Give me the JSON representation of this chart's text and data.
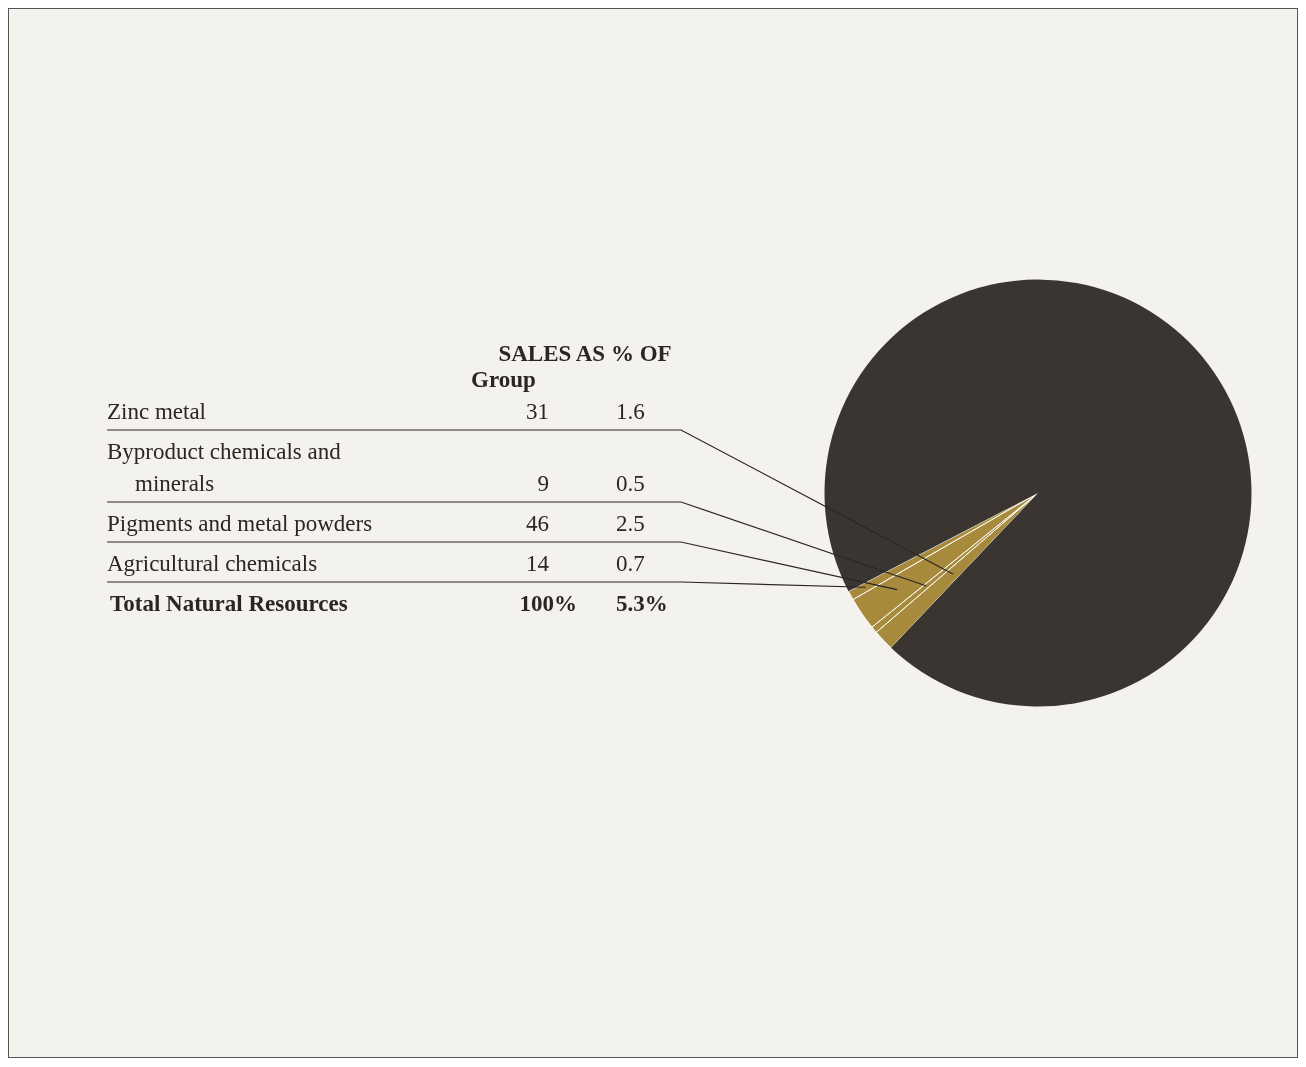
{
  "chart_data": {
    "type": "pie",
    "title": "SALES AS % OF",
    "categories": [
      "Zinc metal",
      "Byproduct chemicals and minerals",
      "Pigments and metal powders",
      "Agricultural chemicals",
      null
    ],
    "values": [
      1.6,
      0.5,
      2.5,
      0.7,
      94.7
    ],
    "colors": [
      "#a88a3c",
      "#a88a3c",
      "#a88a3c",
      "#a88a3c",
      "#3b3531"
    ],
    "value_labels": [
      "1.6",
      "0.5",
      "2.5",
      "0.7",
      null
    ],
    "annotations": [
      "Group",
      "31",
      "9",
      "46",
      "14",
      "Total Natural Resources",
      "100%",
      "5.3%"
    ]
  }
}
